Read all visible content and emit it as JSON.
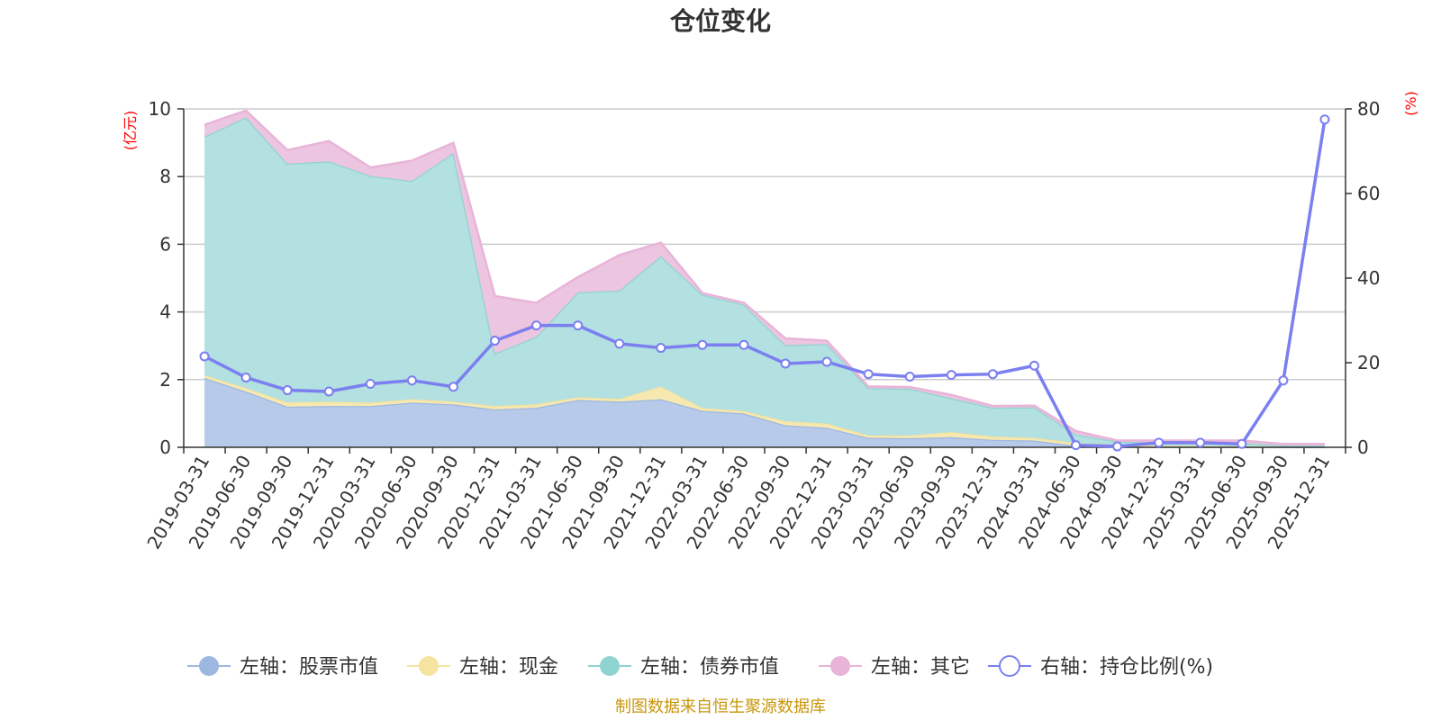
{
  "chart_data": {
    "type": "area",
    "title": "仓位变化",
    "left_axis_unit": "(亿元)",
    "right_axis_unit": "(%)",
    "left_ylim": [
      0,
      10
    ],
    "left_ticks": [
      0,
      2,
      4,
      6,
      8,
      10
    ],
    "right_ylim": [
      0,
      80
    ],
    "right_ticks": [
      0,
      20,
      40,
      60,
      80
    ],
    "categories": [
      "2019-03-31",
      "2019-06-30",
      "2019-09-30",
      "2019-12-31",
      "2020-03-31",
      "2020-06-30",
      "2020-09-30",
      "2020-12-31",
      "2021-03-31",
      "2021-06-30",
      "2021-09-30",
      "2021-12-31",
      "2022-03-31",
      "2022-06-30",
      "2022-09-30",
      "2022-12-31",
      "2023-03-31",
      "2023-06-30",
      "2023-09-30",
      "2023-12-31",
      "2024-03-31",
      "2024-06-30",
      "2024-09-30",
      "2024-12-31",
      "2025-03-31",
      "2025-06-30",
      "2025-09-30",
      "2025-12-31"
    ],
    "stacked_series": [
      {
        "name": "左轴：股票市值",
        "color": "#9db8e0",
        "fill": "#b8cae9",
        "values": [
          2.05,
          1.65,
          1.2,
          1.22,
          1.22,
          1.32,
          1.27,
          1.12,
          1.17,
          1.4,
          1.35,
          1.42,
          1.08,
          1.0,
          0.65,
          0.58,
          0.28,
          0.27,
          0.3,
          0.22,
          0.2,
          0.05,
          0.02,
          0.01,
          0.01,
          0.01,
          0.01,
          0.01
        ]
      },
      {
        "name": "左轴：现金",
        "color": "#f5e3a0",
        "fill": "#f7e8b0",
        "values": [
          0.08,
          0.1,
          0.13,
          0.13,
          0.1,
          0.1,
          0.08,
          0.1,
          0.1,
          0.08,
          0.08,
          0.38,
          0.08,
          0.07,
          0.12,
          0.12,
          0.07,
          0.08,
          0.15,
          0.1,
          0.08,
          0.08,
          0.05,
          0.03,
          0.03,
          0.02,
          0.02,
          0.02
        ]
      },
      {
        "name": "左轴：债券市值",
        "color": "#8fd4d1",
        "fill": "#b3e0e0",
        "values": [
          7.05,
          8.0,
          7.05,
          7.1,
          6.7,
          6.45,
          7.35,
          1.55,
          2.0,
          3.1,
          3.2,
          3.85,
          3.35,
          3.15,
          2.25,
          2.35,
          1.4,
          1.38,
          1.0,
          0.85,
          0.9,
          0.25,
          0.1,
          0.1,
          0.1,
          0.1,
          0.02,
          0.02
        ]
      },
      {
        "name": "左轴：其它",
        "color": "#e8b4d8",
        "fill": "#ecc5e0",
        "values": [
          0.35,
          0.2,
          0.4,
          0.6,
          0.25,
          0.6,
          0.3,
          1.7,
          1.0,
          0.45,
          1.05,
          0.4,
          0.05,
          0.05,
          0.2,
          0.1,
          0.05,
          0.05,
          0.1,
          0.05,
          0.05,
          0.1,
          0.03,
          0.06,
          0.06,
          0.07,
          0.05,
          0.05
        ]
      }
    ],
    "line_series": {
      "name": "右轴：持仓比例(%)",
      "color": "#7b7ff0",
      "values": [
        21.5,
        16.5,
        13.5,
        13.2,
        15,
        15.8,
        14.3,
        25.2,
        28.8,
        28.8,
        24.5,
        23.5,
        24.2,
        24.2,
        19.8,
        20.2,
        17.3,
        16.7,
        17.1,
        17.3,
        19.3,
        0.5,
        0.2,
        1.1,
        1.1,
        0.8,
        15.8,
        77.5
      ]
    },
    "legend_position": "bottom-center"
  },
  "footer": {
    "source_text": "制图数据来自恒生聚源数据库"
  },
  "colors": {
    "grid": "#cccccc",
    "axis": "#333333",
    "unit_red": "#ff0000",
    "source_gold": "#c8960a"
  }
}
